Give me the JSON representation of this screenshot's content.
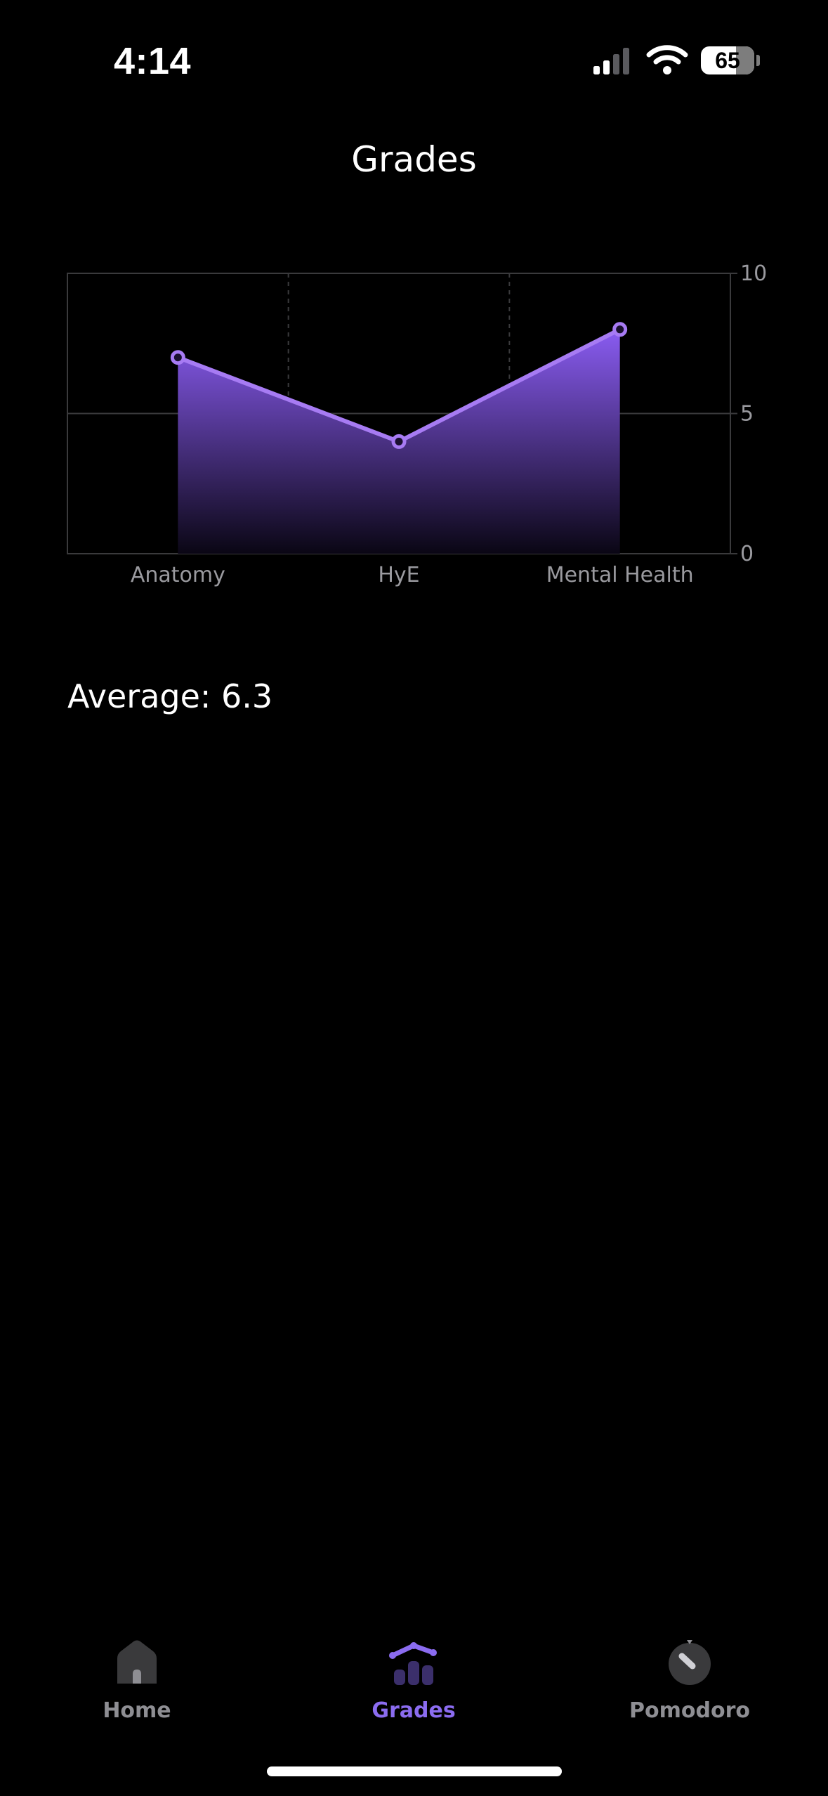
{
  "status_bar": {
    "time": "4:14",
    "battery": "65",
    "icons": [
      "cellular-signal-icon",
      "wifi-icon",
      "battery-icon"
    ]
  },
  "header": {
    "title": "Grades"
  },
  "chart_data": {
    "type": "area",
    "categories": [
      "Anatomy",
      "HyE",
      "Mental Health"
    ],
    "values": [
      7,
      4,
      8
    ],
    "ylim": [
      0,
      10
    ],
    "yticks": [
      "0",
      "5",
      "10"
    ],
    "grid": true,
    "legend": "none",
    "colors": {
      "line": "#a77bf3",
      "fill_top": "#8a5cf2",
      "fill_bottom": "#0a0614",
      "grid": "#3a3a3c",
      "tick_text": "#9a9a9f"
    }
  },
  "summary": {
    "label": "Average: ",
    "value": "6.3"
  },
  "tab_bar": {
    "tabs": [
      {
        "label": "Home",
        "icon": "home-icon",
        "active": false
      },
      {
        "label": "Grades",
        "icon": "grades-chart-icon",
        "active": true
      },
      {
        "label": "Pomodoro",
        "icon": "timer-dial-icon",
        "active": false
      }
    ],
    "active_color": "#8b6cf0",
    "inactive_color": "#8e8e93"
  }
}
